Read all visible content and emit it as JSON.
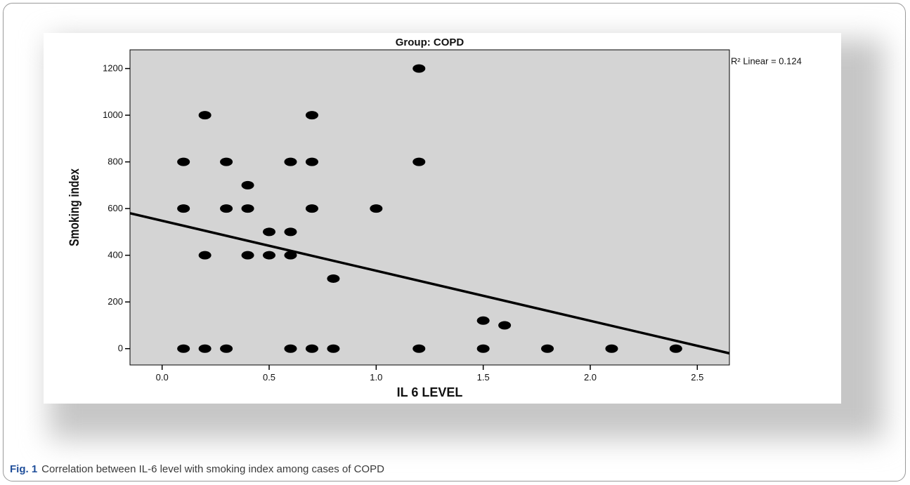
{
  "chart_data": {
    "type": "scatter",
    "title": "Group: COPD",
    "xlabel": "IL 6 LEVEL",
    "ylabel": "Smoking index",
    "xlim": [
      -0.15,
      2.65
    ],
    "ylim": [
      -70,
      1280
    ],
    "xticks": [
      0.0,
      0.5,
      1.0,
      1.5,
      2.0,
      2.5
    ],
    "xtick_labels": [
      "0.0",
      "0.5",
      "1.0",
      "1.5",
      "2.0",
      "2.5"
    ],
    "yticks": [
      0,
      200,
      400,
      600,
      800,
      1000,
      1200
    ],
    "ytick_labels": [
      "0",
      "200",
      "400",
      "600",
      "800",
      "1000",
      "1200"
    ],
    "points": [
      {
        "x": 0.1,
        "y": 800
      },
      {
        "x": 0.1,
        "y": 600
      },
      {
        "x": 0.1,
        "y": 0
      },
      {
        "x": 0.2,
        "y": 1000
      },
      {
        "x": 0.2,
        "y": 400
      },
      {
        "x": 0.2,
        "y": 0
      },
      {
        "x": 0.3,
        "y": 800
      },
      {
        "x": 0.3,
        "y": 600
      },
      {
        "x": 0.3,
        "y": 0
      },
      {
        "x": 0.4,
        "y": 700
      },
      {
        "x": 0.4,
        "y": 600
      },
      {
        "x": 0.4,
        "y": 400
      },
      {
        "x": 0.5,
        "y": 500
      },
      {
        "x": 0.5,
        "y": 400
      },
      {
        "x": 0.6,
        "y": 800
      },
      {
        "x": 0.6,
        "y": 500
      },
      {
        "x": 0.6,
        "y": 400
      },
      {
        "x": 0.6,
        "y": 0
      },
      {
        "x": 0.7,
        "y": 1000
      },
      {
        "x": 0.7,
        "y": 800
      },
      {
        "x": 0.7,
        "y": 600
      },
      {
        "x": 0.7,
        "y": 0
      },
      {
        "x": 0.8,
        "y": 300
      },
      {
        "x": 0.8,
        "y": 0
      },
      {
        "x": 1.0,
        "y": 600
      },
      {
        "x": 1.2,
        "y": 1200
      },
      {
        "x": 1.2,
        "y": 800
      },
      {
        "x": 1.2,
        "y": 0
      },
      {
        "x": 1.5,
        "y": 120
      },
      {
        "x": 1.5,
        "y": 0
      },
      {
        "x": 1.6,
        "y": 100
      },
      {
        "x": 1.8,
        "y": 0
      },
      {
        "x": 2.1,
        "y": 0
      },
      {
        "x": 2.4,
        "y": 0
      }
    ],
    "fit_line": {
      "x1": -0.15,
      "y1": 580,
      "x2": 2.65,
      "y2": -20
    },
    "r2_label": "R² Linear = 0.124",
    "grid": false,
    "plot_background": "#d4d4d4",
    "point_color": "#000000"
  },
  "caption": {
    "label": "Fig. 1",
    "text": "Correlation between IL-6 level with smoking index among cases of COPD"
  }
}
